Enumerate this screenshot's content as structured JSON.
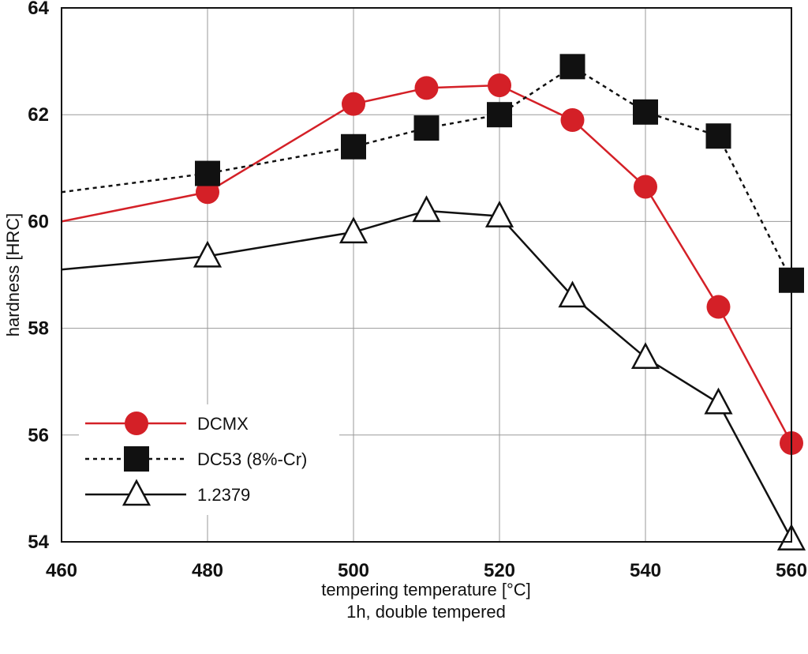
{
  "chart_data": {
    "type": "line",
    "xlabel": "tempering temperature [°C]",
    "xlabel2": "1h, double tempered",
    "ylabel": "hardness [HRC]",
    "xlim": [
      460,
      560
    ],
    "ylim": [
      54,
      64
    ],
    "xticks": [
      "460",
      "480",
      "500",
      "520",
      "540",
      "560"
    ],
    "yticks": [
      "54",
      "56",
      "58",
      "60",
      "62",
      "64"
    ],
    "grid": true,
    "legend_position": "bottom-left",
    "series": [
      {
        "name": "DCMX",
        "color": "#d42027",
        "marker": "circle",
        "dash": "solid",
        "x": [
          460,
          480,
          500,
          510,
          520,
          530,
          540,
          550,
          560
        ],
        "y": [
          60.0,
          60.55,
          62.2,
          62.5,
          62.55,
          61.9,
          60.65,
          58.4,
          55.85
        ],
        "markers_from": 480
      },
      {
        "name": "DC53 (8%-Cr)",
        "color": "#111111",
        "marker": "square",
        "dash": "dotted",
        "x": [
          460,
          480,
          500,
          510,
          520,
          530,
          540,
          550,
          560
        ],
        "y": [
          60.55,
          60.9,
          61.4,
          61.75,
          62.0,
          62.9,
          62.05,
          61.6,
          58.9
        ],
        "markers_from": 480
      },
      {
        "name": "1.2379",
        "color": "#111111",
        "marker": "triangle",
        "dash": "solid",
        "x": [
          460,
          480,
          500,
          510,
          520,
          530,
          540,
          550,
          560
        ],
        "y": [
          59.1,
          59.35,
          59.8,
          60.2,
          60.1,
          58.6,
          57.45,
          56.6,
          54.05
        ],
        "markers_from": 480
      }
    ]
  }
}
